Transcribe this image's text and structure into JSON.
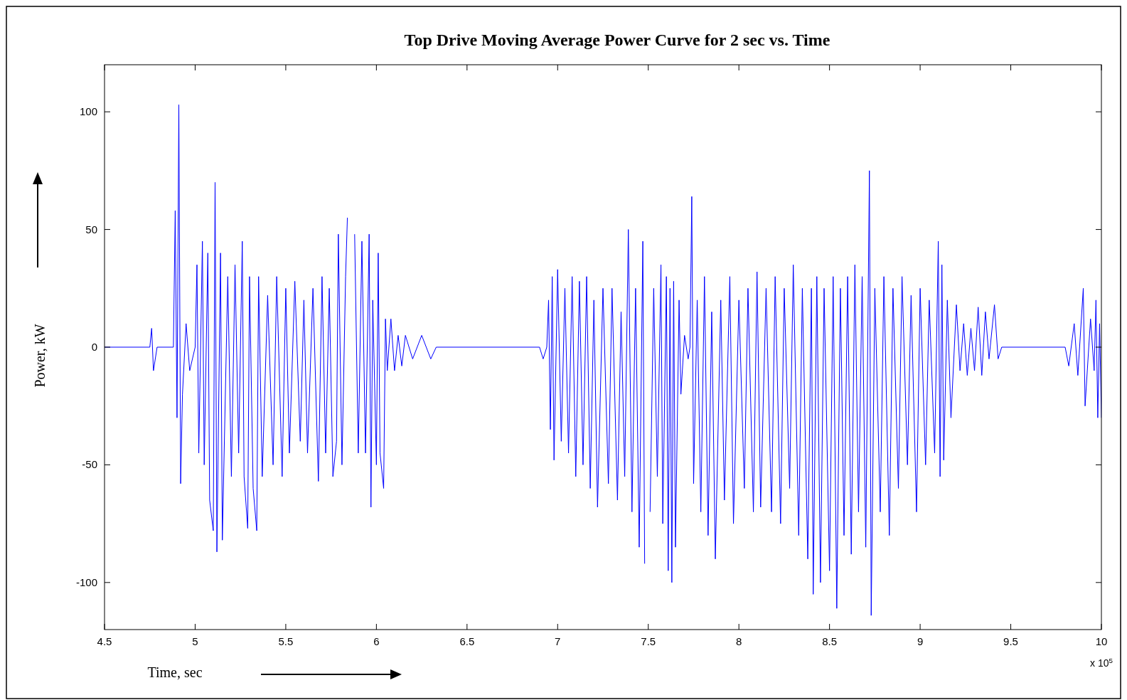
{
  "chart_data": {
    "type": "line",
    "title": "Top Drive Moving Average Power Curve for 2 sec vs. Time",
    "xlabel": "Time, sec",
    "ylabel": "Power, kW",
    "annotations": [
      "x 10$^{5}$"
    ],
    "xlim": [
      4.5,
      10
    ],
    "ylim": [
      -120,
      120
    ],
    "xticks": [
      4.5,
      5,
      5.5,
      6,
      6.5,
      7,
      7.5,
      8,
      8.5,
      9,
      9.5,
      10
    ],
    "yticks": [
      -100,
      -50,
      0,
      50,
      100
    ],
    "grid": false,
    "marker": "none",
    "line_style": "solid",
    "series": [
      {
        "color": "#0000ff",
        "x": [
          4.5,
          4.75,
          4.76,
          4.77,
          4.79,
          4.88,
          4.89,
          4.9,
          4.91,
          4.92,
          4.93,
          4.95,
          4.97,
          5,
          5.01,
          5.02,
          5.04,
          5.05,
          5.07,
          5.08,
          5.1,
          5.11,
          5.12,
          5.14,
          5.15,
          5.18,
          5.2,
          5.22,
          5.24,
          5.26,
          5.27,
          5.29,
          5.3,
          5.32,
          5.34,
          5.35,
          5.37,
          5.4,
          5.43,
          5.45,
          5.48,
          5.5,
          5.52,
          5.55,
          5.58,
          5.6,
          5.62,
          5.65,
          5.68,
          5.7,
          5.72,
          5.74,
          5.76,
          5.78,
          5.79,
          5.81,
          5.83,
          5.84,
          5.86,
          5.88,
          5.9,
          5.92,
          5.94,
          5.96,
          5.97,
          5.98,
          6,
          6.01,
          6.02,
          6.04,
          6.05,
          6.06,
          6.08,
          6.1,
          6.12,
          6.14,
          6.16,
          6.2,
          6.25,
          6.3,
          6.33,
          6.9,
          6.92,
          6.94,
          6.95,
          6.96,
          6.97,
          6.98,
          7,
          7.02,
          7.04,
          7.06,
          7.08,
          7.1,
          7.12,
          7.14,
          7.16,
          7.18,
          7.2,
          7.22,
          7.25,
          7.28,
          7.3,
          7.33,
          7.35,
          7.37,
          7.39,
          7.41,
          7.43,
          7.45,
          7.47,
          7.48,
          7.49,
          7.493,
          7.51,
          7.53,
          7.55,
          7.57,
          7.58,
          7.6,
          7.61,
          7.62,
          7.63,
          7.64,
          7.65,
          7.67,
          7.68,
          7.7,
          7.72,
          7.73,
          7.74,
          7.75,
          7.77,
          7.79,
          7.81,
          7.83,
          7.85,
          7.87,
          7.9,
          7.92,
          7.95,
          7.97,
          8,
          8.03,
          8.05,
          8.08,
          8.1,
          8.12,
          8.15,
          8.18,
          8.2,
          8.23,
          8.25,
          8.28,
          8.3,
          8.33,
          8.35,
          8.38,
          8.4,
          8.41,
          8.43,
          8.45,
          8.47,
          8.5,
          8.52,
          8.54,
          8.56,
          8.58,
          8.6,
          8.62,
          8.64,
          8.66,
          8.68,
          8.7,
          8.72,
          8.73,
          8.75,
          8.78,
          8.8,
          8.83,
          8.85,
          8.88,
          8.9,
          8.93,
          8.95,
          8.98,
          9,
          9.03,
          9.05,
          9.08,
          9.1,
          9.11,
          9.12,
          9.13,
          9.15,
          9.17,
          9.2,
          9.22,
          9.24,
          9.26,
          9.28,
          9.3,
          9.32,
          9.34,
          9.36,
          9.38,
          9.41,
          9.43,
          9.45,
          9.8,
          9.82,
          9.85,
          9.87,
          9.9,
          9.91,
          9.94,
          9.96,
          9.97,
          9.98,
          9.99,
          10
        ],
        "values": [
          0,
          0,
          8,
          -10,
          0,
          0,
          58,
          -30,
          103,
          -58,
          -20,
          10,
          -10,
          0,
          35,
          -45,
          45,
          -50,
          40,
          -65,
          -78,
          70,
          -87,
          40,
          -82,
          30,
          -55,
          35,
          -45,
          45,
          -55,
          -77,
          30,
          -60,
          -78,
          30,
          -55,
          22,
          -50,
          30,
          -55,
          25,
          -45,
          28,
          -40,
          20,
          -45,
          25,
          -57,
          30,
          -45,
          25,
          -55,
          -40,
          48,
          -50,
          30,
          55,
          null,
          48,
          -45,
          45,
          -45,
          48,
          -68,
          20,
          -50,
          40,
          -45,
          -60,
          12,
          -10,
          12,
          -10,
          5,
          -8,
          5,
          -5,
          5,
          -5,
          0,
          0,
          -5,
          0,
          20,
          -35,
          30,
          -48,
          33,
          -40,
          25,
          -45,
          30,
          -55,
          28,
          -50,
          30,
          -60,
          20,
          -68,
          25,
          -58,
          25,
          -65,
          15,
          -55,
          50,
          -70,
          25,
          -85,
          45,
          -92,
          null,
          null,
          -70,
          25,
          -55,
          35,
          -75,
          30,
          -95,
          25,
          -100,
          28,
          -85,
          20,
          -20,
          5,
          -5,
          0,
          64,
          -58,
          20,
          -70,
          30,
          -80,
          15,
          -90,
          20,
          -65,
          30,
          -75,
          20,
          -60,
          25,
          -70,
          32,
          -68,
          25,
          -70,
          30,
          -75,
          25,
          -60,
          35,
          -80,
          25,
          -90,
          25,
          -105,
          30,
          -100,
          25,
          -95,
          30,
          -111,
          25,
          -80,
          30,
          -88,
          35,
          -70,
          30,
          -85,
          75,
          -114,
          25,
          -70,
          30,
          -80,
          25,
          -60,
          30,
          -50,
          22,
          -70,
          25,
          -50,
          20,
          -45,
          45,
          -55,
          35,
          -48,
          20,
          -30,
          18,
          -10,
          10,
          -12,
          8,
          -10,
          17,
          -12,
          15,
          -5,
          18,
          -5,
          0,
          0,
          -8,
          10,
          -12,
          25,
          -25,
          12,
          -10,
          20,
          -30,
          10,
          -30
        ]
      }
    ]
  }
}
